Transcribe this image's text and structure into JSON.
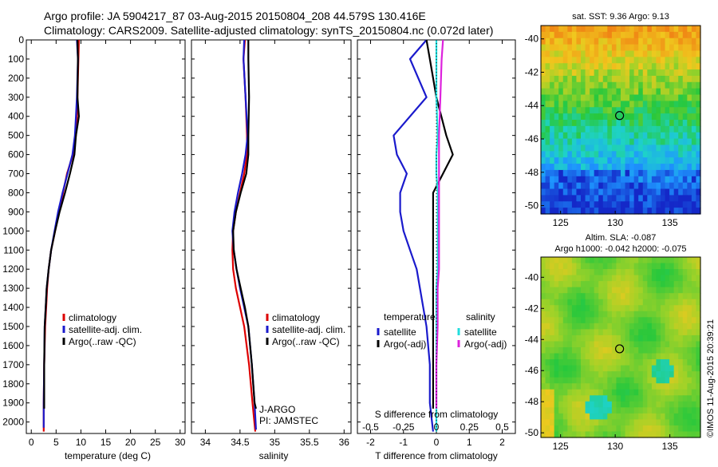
{
  "header": {
    "title_line1": "Argo profile: JA 5904217_87 03-Aug-2015 20150804_208 44.579S 130.416E",
    "title_line2": "Climatology: CARS2009. Satellite-adjusted climatology: synTS_20150804.nc (0.072d later)"
  },
  "colors": {
    "climatology": "#dd0000",
    "satellite": "#1a1acc",
    "argo": "#000000",
    "sal_sat": "#22dddd",
    "sal_argo": "#dd22dd"
  },
  "chart_data": [
    {
      "type": "line",
      "name": "temperature-profile",
      "xlabel": "temperature (deg C)",
      "ylabel": "",
      "xlim": [
        -1,
        31
      ],
      "ylim": [
        2060,
        0
      ],
      "xticks": [
        0,
        5,
        10,
        15,
        20,
        25,
        30
      ],
      "yticks": [
        0,
        100,
        200,
        300,
        400,
        500,
        600,
        700,
        800,
        900,
        1000,
        1100,
        1200,
        1300,
        1400,
        1500,
        1600,
        1700,
        1800,
        1900,
        2000
      ],
      "legend": [
        "climatology",
        "satellite-adj. clim.",
        "Argo(..raw -QC)"
      ],
      "series": [
        {
          "name": "climatology",
          "color": "#dd0000",
          "x": [
            9.6,
            9.5,
            9.3,
            9.2,
            9.0,
            8.4,
            7.2,
            6.4,
            5.6,
            4.8,
            4.0,
            3.5,
            3.2,
            3.0,
            2.8,
            2.6,
            2.5,
            2.5
          ],
          "y": [
            0,
            100,
            300,
            400,
            500,
            600,
            700,
            800,
            900,
            1000,
            1100,
            1200,
            1300,
            1400,
            1500,
            1700,
            1900,
            2050
          ]
        },
        {
          "name": "satellite-adj. clim.",
          "color": "#1a1acc",
          "x": [
            9.2,
            9.4,
            9.2,
            9.0,
            8.8,
            8.3,
            7.3,
            6.3,
            5.4,
            4.7,
            4.0,
            3.5,
            3.1,
            2.9,
            2.7,
            2.6,
            2.5,
            2.5
          ],
          "y": [
            0,
            100,
            300,
            400,
            500,
            600,
            700,
            800,
            900,
            1000,
            1100,
            1200,
            1300,
            1400,
            1500,
            1700,
            1900,
            2030
          ]
        },
        {
          "name": "Argo(..raw -QC)",
          "color": "#000000",
          "x": [
            9.3,
            9.4,
            9.3,
            9.6,
            9.0,
            8.7,
            7.8,
            6.8,
            5.7,
            4.8,
            4.0,
            3.5,
            3.1,
            2.9,
            2.7,
            2.6,
            2.6
          ],
          "y": [
            0,
            100,
            300,
            400,
            500,
            600,
            700,
            800,
            900,
            1000,
            1100,
            1200,
            1300,
            1400,
            1500,
            1700,
            1930
          ]
        }
      ]
    },
    {
      "type": "line",
      "name": "salinity-profile",
      "xlabel": "salinity",
      "ylabel": "",
      "xlim": [
        33.8,
        36.1
      ],
      "ylim": [
        2060,
        0
      ],
      "xticks": [
        34,
        34.5,
        35,
        35.5,
        36
      ],
      "xticklabels": [
        "34",
        "34.5",
        "35",
        "35.5",
        "36"
      ],
      "legend": [
        "climatology",
        "satellite-adj. clim.",
        "Argo(..raw -QC)"
      ],
      "annotations": [
        "J-ARGO",
        "PI: JAMSTEC"
      ],
      "series": [
        {
          "name": "climatology",
          "color": "#dd0000",
          "x": [
            34.57,
            34.55,
            34.58,
            34.6,
            34.6,
            34.56,
            34.5,
            34.44,
            34.4,
            34.39,
            34.4,
            34.44,
            34.5,
            34.56,
            34.63,
            34.68,
            34.72
          ],
          "y": [
            0,
            100,
            300,
            500,
            600,
            700,
            800,
            900,
            1000,
            1100,
            1200,
            1300,
            1400,
            1500,
            1700,
            1900,
            2050
          ]
        },
        {
          "name": "satellite-adj. clim.",
          "color": "#1a1acc",
          "x": [
            34.56,
            34.55,
            34.58,
            34.61,
            34.58,
            34.53,
            34.47,
            34.42,
            34.39,
            34.41,
            34.45,
            34.5,
            34.56,
            34.62,
            34.67,
            34.71,
            34.73
          ],
          "y": [
            0,
            100,
            300,
            500,
            600,
            700,
            800,
            900,
            1000,
            1100,
            1200,
            1300,
            1400,
            1500,
            1700,
            1900,
            2040
          ]
        },
        {
          "name": "Argo(..raw -QC)",
          "color": "#000000",
          "x": [
            34.62,
            34.62,
            34.63,
            34.62,
            34.62,
            34.59,
            34.51,
            34.44,
            34.4,
            34.41,
            34.45,
            34.51,
            34.57,
            34.62,
            34.67,
            34.71,
            34.73
          ],
          "y": [
            0,
            100,
            300,
            500,
            600,
            700,
            800,
            900,
            1000,
            1100,
            1200,
            1300,
            1400,
            1500,
            1700,
            1900,
            1930
          ]
        }
      ]
    },
    {
      "type": "line",
      "name": "difference-profile",
      "xlabel": "T difference from climatology",
      "x2label": "S difference from climatology",
      "xlim": [
        -2.4,
        2.4
      ],
      "ylim": [
        2060,
        0
      ],
      "xticks": [
        -2,
        -1,
        0,
        1,
        2
      ],
      "x2ticks": [
        -0.5,
        -0.25,
        0,
        0.25,
        0.5
      ],
      "x2ticklabels": [
        "-0.5",
        "-0.25",
        "0",
        "0.25",
        "0.5"
      ],
      "legend_temperature": {
        "header": "temperature",
        "items": [
          "satellite",
          "Argo(-adj)"
        ]
      },
      "legend_salinity": {
        "header": "salinity",
        "items": [
          "satellite",
          "Argo(-adj)"
        ]
      },
      "series": [
        {
          "name": "temperature satellite",
          "color": "#1a1acc",
          "x": [
            -0.3,
            -0.8,
            -0.3,
            -1.3,
            -1.2,
            -0.9,
            -1.1,
            -1.1,
            -1.0,
            -0.8,
            -0.6,
            -0.5,
            -0.4,
            -0.3,
            -0.2,
            -0.2,
            -0.1
          ],
          "y": [
            0,
            100,
            300,
            500,
            600,
            700,
            800,
            900,
            1000,
            1100,
            1200,
            1300,
            1400,
            1500,
            1700,
            1900,
            2050
          ]
        },
        {
          "name": "temperature Argo(-adj)",
          "color": "#000000",
          "x": [
            -0.3,
            -0.2,
            0.0,
            0.3,
            0.5,
            0.2,
            -0.1,
            -0.1,
            -0.1,
            -0.1,
            -0.1,
            -0.1,
            -0.1,
            -0.1,
            -0.1,
            -0.1,
            -0.1
          ],
          "y": [
            0,
            100,
            300,
            500,
            600,
            700,
            800,
            900,
            1000,
            1100,
            1200,
            1300,
            1400,
            1500,
            1700,
            1900,
            1930
          ]
        },
        {
          "name": "salinity satellite",
          "color": "#22dddd",
          "x": [
            0.0,
            0.0,
            0.0,
            0.01,
            0.0,
            0.0,
            0.01,
            0.01,
            0.01,
            0.01,
            0.01,
            0.0,
            0.0,
            0.0,
            0.0,
            0.0,
            0.0
          ],
          "y": [
            0,
            100,
            300,
            500,
            600,
            700,
            800,
            900,
            1000,
            1100,
            1200,
            1300,
            1400,
            1500,
            1700,
            1900,
            2050
          ]
        },
        {
          "name": "salinity Argo(-adj)",
          "color": "#dd22dd",
          "x": [
            0.05,
            0.04,
            0.03,
            0.02,
            0.02,
            0.02,
            0.02,
            0.02,
            0.02,
            0.02,
            0.02,
            0.01,
            0.01,
            0.01,
            0.0,
            0.0,
            0.0
          ],
          "y": [
            0,
            100,
            300,
            500,
            600,
            700,
            800,
            900,
            1000,
            1100,
            1200,
            1300,
            1400,
            1500,
            1700,
            1900,
            1930
          ]
        }
      ]
    },
    {
      "type": "heatmap",
      "name": "sst-map",
      "title": "sat. SST: 9.36 Argo: 9.13",
      "xlim": [
        123.2,
        137.8
      ],
      "ylim": [
        -50.5,
        -39.2
      ],
      "xticks": [
        125,
        130,
        135
      ],
      "yticks": [
        -40,
        -42,
        -44,
        -46,
        -48,
        -50
      ],
      "marker": {
        "x": 130.4,
        "y": -44.6
      }
    },
    {
      "type": "heatmap",
      "name": "sla-map",
      "title_line1": "Altim. SLA: -0.087",
      "title_line2": "Argo h1000: -0.042 h2000: -0.075",
      "xlim": [
        123.2,
        137.8
      ],
      "ylim": [
        -50.3,
        -38.7
      ],
      "xticks": [
        125,
        130,
        135
      ],
      "yticks": [
        -40,
        -42,
        -44,
        -46,
        -48,
        -50
      ],
      "marker": {
        "x": 130.4,
        "y": -44.6
      }
    }
  ],
  "footer": {
    "credit": "©IMOS 11-Aug-2015 20:39:21"
  }
}
